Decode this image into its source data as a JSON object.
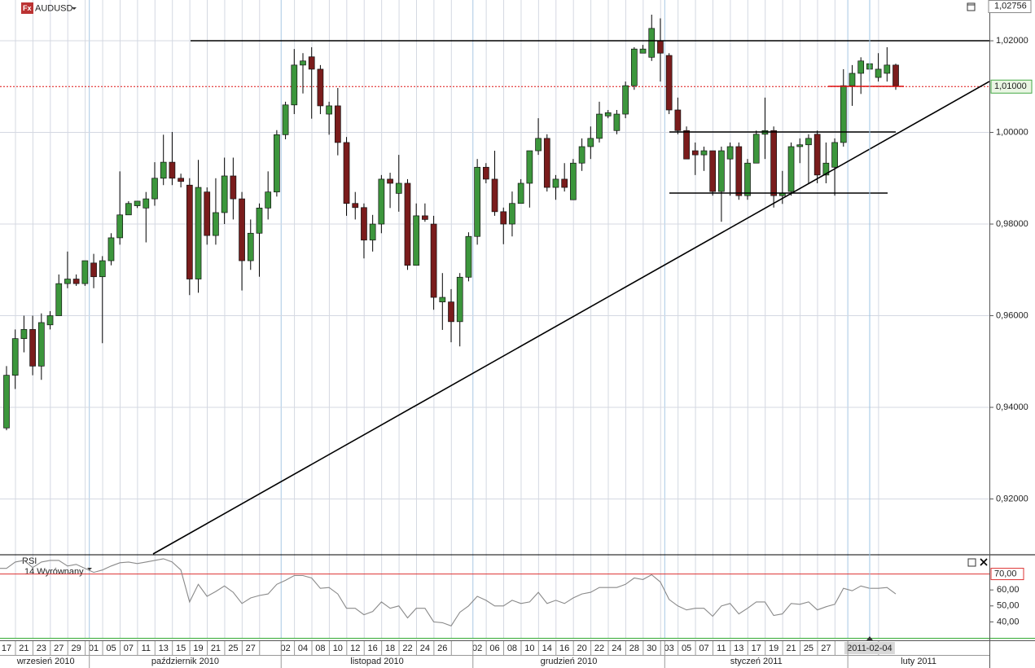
{
  "header": {
    "icon": "Fx",
    "symbol": "AUDUSD"
  },
  "chart_data": [
    {
      "type": "candlestick",
      "categories": [
        "17",
        null,
        "21",
        null,
        "23",
        null,
        "27",
        null,
        "29",
        null,
        "01",
        null,
        "05",
        null,
        "07",
        null,
        "11",
        null,
        "13",
        null,
        "15",
        null,
        "19",
        null,
        "21",
        null,
        "25",
        null,
        "27",
        null,
        null,
        null,
        "02",
        null,
        "04",
        null,
        "08",
        null,
        "10",
        null,
        "12",
        null,
        "16",
        null,
        "18",
        null,
        "22",
        null,
        "24",
        null,
        "26",
        null,
        null,
        null,
        "02",
        null,
        "06",
        null,
        "08",
        null,
        "10",
        null,
        "14",
        null,
        "16",
        null,
        "20",
        null,
        "22",
        null,
        "24",
        null,
        "28",
        null,
        "30",
        null,
        "03",
        null,
        "05",
        null,
        "07",
        null,
        "11",
        null,
        "13",
        null,
        "17",
        null,
        "19",
        null,
        "21",
        null,
        "25",
        null,
        "27",
        null,
        null,
        null,
        null,
        "2011-02-04",
        null,
        null,
        null
      ],
      "months": [
        "wrzesień 2010",
        "październik 2010",
        "listopad 2010",
        "grudzień 2010",
        "styczeń 2011",
        "luty 2011"
      ],
      "open": [
        0.9355,
        0.947,
        0.955,
        0.957,
        0.949,
        0.958,
        0.96,
        0.967,
        0.968,
        0.967,
        0.9715,
        0.9685,
        0.972,
        0.977,
        0.982,
        0.984,
        0.9835,
        0.9855,
        0.99,
        0.9935,
        0.99,
        0.9885,
        0.968,
        0.987,
        0.9775,
        0.9825,
        0.9905,
        0.9855,
        0.972,
        0.978,
        0.9835,
        0.987,
        0.9995,
        1.006,
        1.0147,
        1.0165,
        1.0138,
        1.004,
        1.0058,
        0.9978,
        0.9845,
        0.9836,
        0.9765,
        0.98,
        0.9898,
        0.9867,
        0.9889,
        0.971,
        0.9818,
        0.98,
        0.963,
        0.963,
        0.9587,
        0.9684,
        0.9773,
        0.9924,
        0.9898,
        0.9827,
        0.98,
        0.9845,
        0.9889,
        0.996,
        0.9987,
        0.988,
        0.9898,
        0.9853,
        0.9933,
        0.9969,
        0.9987,
        1.0036,
        1.0004,
        1.004,
        1.0102,
        1.0173,
        1.0164,
        1.02,
        1.0168,
        1.0049,
        1.0004,
        0.996,
        0.9951,
        0.996,
        0.9871,
        0.9942,
        0.9969,
        0.9862,
        0.9933,
        0.9996,
        1.0004,
        0.9862,
        0.9871,
        0.9969,
        0.9973,
        0.9996,
        0.9907,
        0.9924,
        0.9978,
        1.0102,
        1.0129,
        1.0138,
        1.012,
        1.0129,
        1.0147
      ],
      "high": [
        0.949,
        0.957,
        0.96,
        0.96,
        0.9605,
        0.961,
        0.969,
        0.974,
        0.969,
        0.972,
        0.9735,
        0.973,
        0.978,
        0.9915,
        0.985,
        0.985,
        0.987,
        0.9935,
        0.9995,
        1.0001,
        0.991,
        0.99,
        0.994,
        0.988,
        0.99,
        0.9945,
        0.9945,
        0.987,
        0.981,
        0.9845,
        0.9915,
        1.0005,
        1.0067,
        1.0182,
        1.0173,
        1.0186,
        1.0147,
        1.0067,
        1.0097,
        0.999,
        0.987,
        0.9845,
        0.982,
        0.9907,
        0.9912,
        0.9951,
        0.9898,
        0.9845,
        0.9845,
        0.9818,
        0.9693,
        0.9658,
        0.9693,
        0.9782,
        0.9942,
        0.9933,
        0.996,
        0.9836,
        0.9871,
        0.9898,
        0.996,
        1.0031,
        0.9996,
        0.9907,
        0.9933,
        0.9942,
        0.9987,
        1.0013,
        1.0067,
        1.0049,
        1.0049,
        1.0111,
        1.0186,
        1.0191,
        1.0257,
        1.0249,
        1.0173,
        1.0076,
        1.0013,
        0.9978,
        0.9969,
        0.996,
        0.9969,
        0.9978,
        0.9978,
        0.9942,
        1.0004,
        1.0076,
        1.0013,
        0.9916,
        0.9978,
        0.9987,
        0.9996,
        1.0004,
        0.9978,
        0.9987,
        1.0138,
        1.0147,
        1.0164,
        1.015,
        1.0173,
        1.0186,
        1.015
      ],
      "low": [
        0.935,
        0.944,
        0.952,
        0.947,
        0.946,
        0.957,
        0.96,
        0.966,
        0.9665,
        0.9665,
        0.966,
        0.954,
        0.971,
        0.9755,
        0.982,
        0.9835,
        0.976,
        0.984,
        0.9885,
        0.9885,
        0.988,
        0.9645,
        0.965,
        0.9755,
        0.9755,
        0.98,
        0.981,
        0.9655,
        0.97,
        0.9685,
        0.981,
        0.986,
        0.9985,
        1.004,
        1.0085,
        1.003,
        1.004,
        0.9995,
        0.995,
        0.9818,
        0.981,
        0.9725,
        0.974,
        0.978,
        0.9835,
        0.9827,
        0.97,
        0.971,
        0.9805,
        0.9613,
        0.9569,
        0.9542,
        0.9533,
        0.9675,
        0.9755,
        0.9889,
        0.9818,
        0.9756,
        0.9773,
        0.9845,
        0.9836,
        0.9951,
        0.9871,
        0.9853,
        0.9871,
        0.9853,
        0.9916,
        0.9942,
        0.9978,
        1.0031,
        0.9996,
        1.0031,
        1.0093,
        1.0173,
        1.0156,
        1.0111,
        1.004,
        0.9996,
        0.9942,
        0.9907,
        0.9916,
        0.9862,
        0.9805,
        0.9862,
        0.9853,
        0.9853,
        0.9933,
        0.9942,
        0.9836,
        0.9844,
        0.9862,
        0.9933,
        0.9889,
        0.9889,
        0.9889,
        0.9862,
        0.9969,
        1.0058,
        1.0084,
        1.0111,
        1.0111,
        1.0111,
        1.0093
      ],
      "close": [
        0.947,
        0.955,
        0.957,
        0.949,
        0.9585,
        0.96,
        0.967,
        0.968,
        0.967,
        0.972,
        0.9685,
        0.972,
        0.977,
        0.982,
        0.9845,
        0.985,
        0.9855,
        0.99,
        0.9935,
        0.99,
        0.9893,
        0.968,
        0.988,
        0.9775,
        0.9825,
        0.9905,
        0.9855,
        0.972,
        0.978,
        0.9835,
        0.987,
        0.9995,
        1.006,
        1.0147,
        1.0156,
        1.0138,
        1.0058,
        1.0058,
        0.9978,
        0.9845,
        0.9836,
        0.9765,
        0.98,
        0.9898,
        0.9889,
        0.9889,
        0.971,
        0.9818,
        0.981,
        0.964,
        0.964,
        0.9587,
        0.9684,
        0.9773,
        0.9924,
        0.9898,
        0.9827,
        0.98,
        0.9845,
        0.9889,
        0.996,
        0.9987,
        0.988,
        0.9898,
        0.988,
        0.9933,
        0.9969,
        0.9987,
        1.004,
        1.0043,
        1.004,
        1.0102,
        1.0182,
        1.0182,
        1.0227,
        1.0173,
        1.0049,
        1.0004,
        0.9942,
        0.9951,
        0.996,
        0.9871,
        0.996,
        0.9969,
        0.9862,
        0.9933,
        0.9996,
        1.0004,
        0.9862,
        0.9867,
        0.9969,
        0.9973,
        0.9987,
        0.9907,
        0.9933,
        0.9978,
        1.0102,
        1.0129,
        1.0156,
        1.015,
        1.0138,
        1.0147,
        1.0102
      ],
      "up_color": "#3c963c",
      "down_color": "#7a1c1c",
      "ylim": [
        0.908,
        1.0289
      ],
      "yticks": [
        {
          "value": 0.92,
          "label": "0,92000"
        },
        {
          "value": 0.94,
          "label": "0,94000"
        },
        {
          "value": 0.96,
          "label": "0,96000"
        },
        {
          "value": 0.98,
          "label": "0,98000"
        },
        {
          "value": 1.0,
          "label": "1,00000"
        },
        {
          "value": 1.02,
          "label": "1,02000"
        }
      ],
      "last_price": {
        "value": 1.02756,
        "label": "1,02756"
      },
      "level": {
        "value": 1.01,
        "label": "1,01000"
      },
      "grid": true
    },
    {
      "type": "line",
      "title": "RSI",
      "subtitle": "14 Wyrównany",
      "color": "#8a8a8a",
      "values": [
        73.5,
        77.5,
        78.5,
        74,
        77.5,
        78.5,
        78.5,
        75,
        76,
        73.5,
        71,
        72.5,
        75,
        77,
        77.5,
        76.5,
        77.5,
        78.5,
        79.5,
        77.5,
        72.5,
        52.5,
        63.5,
        56,
        59,
        62.5,
        58.5,
        51.5,
        55,
        56.5,
        57.5,
        63.5,
        66,
        69,
        69,
        67.5,
        61,
        61.5,
        57.5,
        48.5,
        48.5,
        44.5,
        46.5,
        52.5,
        48.5,
        50,
        42.5,
        48.5,
        48.5,
        40,
        39.5,
        37.5,
        46,
        50,
        56,
        53.5,
        50,
        50,
        53.5,
        51.5,
        52.5,
        58.5,
        51.5,
        53.5,
        51.5,
        55,
        57.5,
        58.5,
        61.5,
        61.5,
        61.5,
        63.5,
        67.5,
        66.5,
        69.5,
        65,
        54,
        50,
        47.5,
        48.5,
        48.5,
        43.5,
        50,
        51.5,
        45,
        48.5,
        52.5,
        52.5,
        44,
        45,
        51.5,
        51,
        52.5,
        47.5,
        49.5,
        51,
        61,
        59.5,
        62.5,
        61,
        61,
        61.5,
        57.5
      ],
      "ylim": [
        30,
        81
      ],
      "yticks": [
        {
          "value": 40,
          "label": "40,00"
        },
        {
          "value": 50,
          "label": "50,00"
        },
        {
          "value": 60,
          "label": "60,00"
        }
      ],
      "level": {
        "value": 70,
        "label": "70,00"
      }
    }
  ]
}
